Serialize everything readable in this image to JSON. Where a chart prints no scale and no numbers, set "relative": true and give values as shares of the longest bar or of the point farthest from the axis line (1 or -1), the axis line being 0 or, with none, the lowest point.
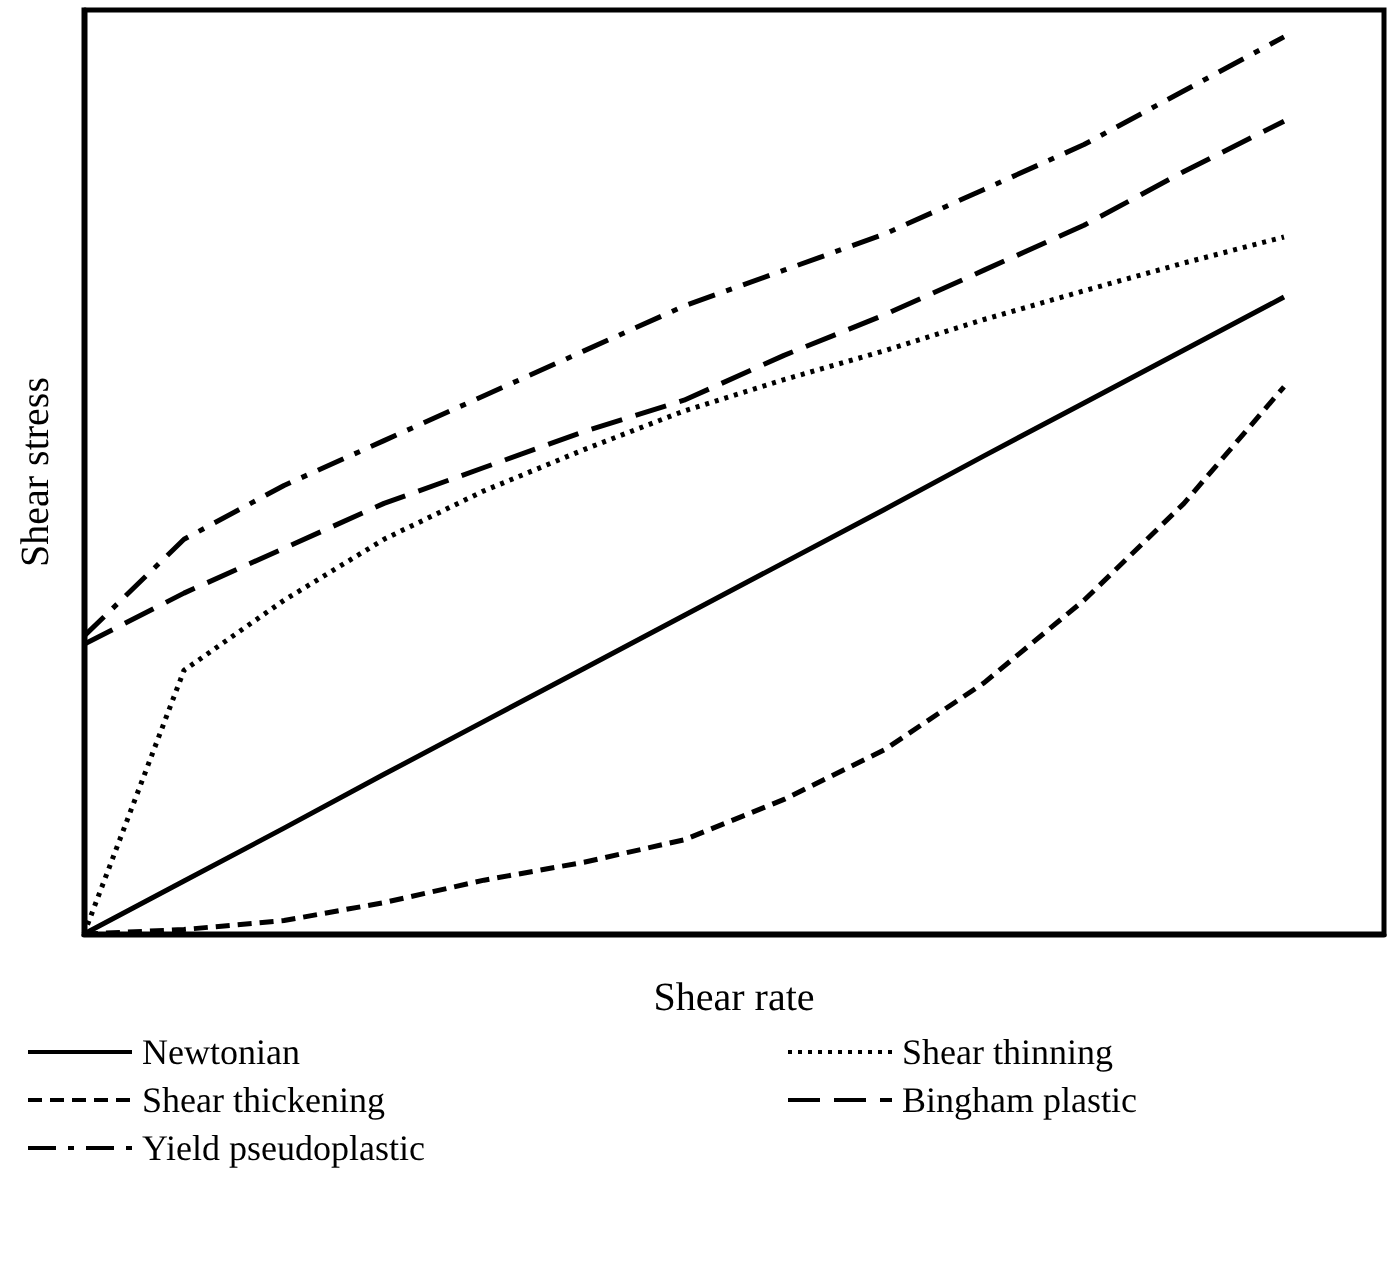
{
  "chart_data": {
    "type": "line",
    "relative": true,
    "xlabel": "Shear rate",
    "ylabel": "Shear stress",
    "legend": "bottom",
    "marker": "none",
    "categories": [
      null,
      null,
      null,
      null,
      null,
      null,
      null,
      null,
      null,
      null,
      null,
      null,
      null,
      null
    ],
    "series": [
      {
        "name": "Newtonian",
        "color": "#000000",
        "line_style": "solid",
        "values": [
          0,
          0.059,
          0.118,
          0.178,
          0.237,
          0.296,
          0.355,
          0.414,
          0.473,
          0.533,
          0.592,
          0.651,
          0.71,
          null
        ]
      },
      {
        "name": "Shear thinning",
        "color": "#000000",
        "line_style": "dotted",
        "values": [
          0,
          0.294,
          0.372,
          0.44,
          0.494,
          0.54,
          0.583,
          0.618,
          0.65,
          0.685,
          0.717,
          0.748,
          0.777,
          null
        ]
      },
      {
        "name": "Shear thickening",
        "color": "#000000",
        "line_style": "dashed",
        "values": [
          0,
          0.005,
          0.015,
          0.035,
          0.06,
          0.08,
          0.105,
          0.15,
          0.205,
          0.28,
          0.372,
          0.48,
          0.61,
          null
        ]
      },
      {
        "name": "Bingham plastic",
        "color": "#000000",
        "line_style": "longdash",
        "values": [
          0.323,
          0.38,
          0.43,
          0.48,
          0.52,
          0.56,
          0.595,
          0.645,
          0.69,
          0.74,
          0.79,
          0.85,
          0.906,
          null
        ]
      },
      {
        "name": "Yield pseudoplastic",
        "color": "#000000",
        "line_style": "dashdot",
        "values": [
          0.332,
          0.44,
          0.5,
          0.55,
          0.6,
          0.65,
          0.7,
          0.74,
          0.78,
          0.83,
          0.88,
          0.94,
          1.0,
          null
        ]
      }
    ]
  }
}
